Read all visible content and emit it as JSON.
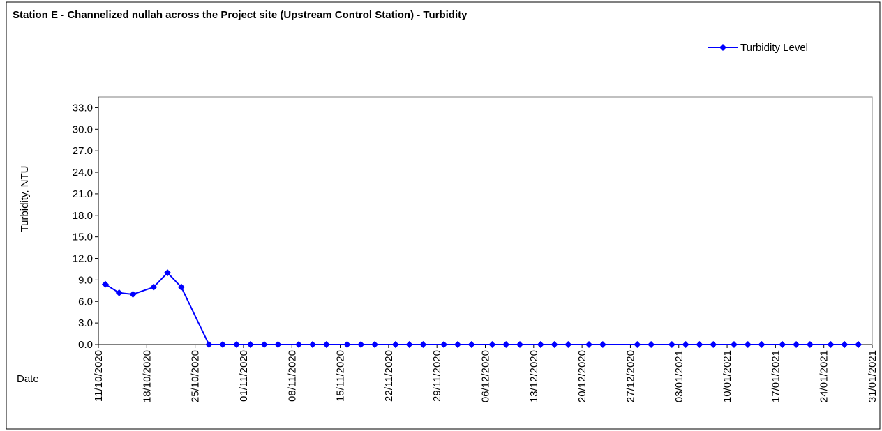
{
  "chart_data": {
    "type": "line",
    "title": "Station E - Channelized nullah across the Project site (Upstream Control Station) - Turbidity",
    "y_label": "Turbidity, NTU",
    "x_label": "Date",
    "x": [
      "12/10/2020",
      "14/10/2020",
      "16/10/2020",
      "19/10/2020",
      "21/10/2020",
      "23/10/2020",
      "27/10/2020",
      "29/10/2020",
      "31/10/2020",
      "02/11/2020",
      "04/11/2020",
      "06/11/2020",
      "09/11/2020",
      "11/11/2020",
      "13/11/2020",
      "16/11/2020",
      "18/11/2020",
      "20/11/2020",
      "23/11/2020",
      "25/11/2020",
      "27/11/2020",
      "30/11/2020",
      "02/12/2020",
      "04/12/2020",
      "07/12/2020",
      "09/12/2020",
      "11/12/2020",
      "14/12/2020",
      "16/12/2020",
      "18/12/2020",
      "21/12/2020",
      "23/12/2020",
      "28/12/2020",
      "30/12/2020",
      "02/01/2021",
      "04/01/2021",
      "06/01/2021",
      "08/01/2021",
      "11/01/2021",
      "13/01/2021",
      "15/01/2021",
      "18/01/2021",
      "20/01/2021",
      "22/01/2021",
      "25/01/2021",
      "27/01/2021",
      "29/01/2021"
    ],
    "series": [
      {
        "name": "Turbidity Level",
        "color": "#0000ff",
        "values": [
          8.4,
          7.2,
          7.0,
          8.0,
          10.0,
          8.0,
          0,
          0,
          0,
          0,
          0,
          0,
          0,
          0,
          0,
          0,
          0,
          0,
          0,
          0,
          0,
          0,
          0,
          0,
          0,
          0,
          0,
          0,
          0,
          0,
          0,
          0,
          0,
          0,
          0,
          0,
          0,
          0,
          0,
          0,
          0,
          0,
          0,
          0,
          0,
          0,
          0
        ]
      }
    ],
    "xlim": [
      "11/10/2020",
      "31/01/2021"
    ],
    "xticks": [
      "11/10/2020",
      "18/10/2020",
      "25/10/2020",
      "01/11/2020",
      "08/11/2020",
      "15/11/2020",
      "22/11/2020",
      "29/11/2020",
      "06/12/2020",
      "13/12/2020",
      "20/12/2020",
      "27/12/2020",
      "03/01/2021",
      "10/01/2021",
      "17/01/2021",
      "24/01/2021",
      "31/01/2021"
    ],
    "ylim": [
      0,
      34.5
    ],
    "yticks": [
      {
        "value": 0,
        "label": "0.0"
      },
      {
        "value": 3,
        "label": "3.0"
      },
      {
        "value": 6,
        "label": "6.0"
      },
      {
        "value": 9,
        "label": "9.0"
      },
      {
        "value": 12,
        "label": "12.0"
      },
      {
        "value": 15,
        "label": "15.0"
      },
      {
        "value": 18,
        "label": "18.0"
      },
      {
        "value": 21,
        "label": "21.0"
      },
      {
        "value": 24,
        "label": "24.0"
      },
      {
        "value": 27,
        "label": "27.0"
      },
      {
        "value": 30,
        "label": "30.0"
      },
      {
        "value": 33,
        "label": "33.0"
      }
    ],
    "grid": false,
    "legend": "top-right"
  }
}
